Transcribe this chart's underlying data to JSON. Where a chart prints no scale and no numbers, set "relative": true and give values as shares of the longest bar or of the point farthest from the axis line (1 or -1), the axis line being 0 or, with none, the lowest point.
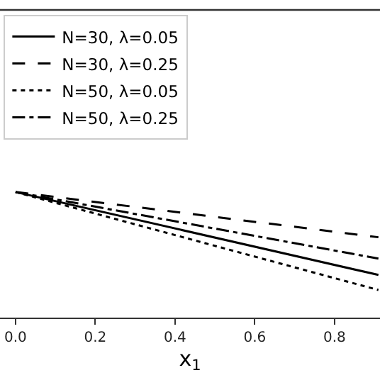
{
  "chart_data": {
    "type": "line",
    "relative": true,
    "xlabel": "x$_{1}$",
    "xlim": [
      -0.039,
      0.914
    ],
    "xticks": [
      {
        "value": 0,
        "label": "0.0"
      },
      {
        "value": 0.2,
        "label": "0.2"
      },
      {
        "value": 0.4,
        "label": "0.4"
      },
      {
        "value": 0.6,
        "label": "0.6"
      },
      {
        "value": 0.8,
        "label": "0.8"
      }
    ],
    "x": [
      0,
      0.91
    ],
    "series": [
      {
        "name": "N=30, λ=0.05",
        "color": "#000000",
        "line_style": "solid",
        "values": [
          1,
          0.34
        ]
      },
      {
        "name": "N=30, λ=0.25",
        "color": "#000000",
        "line_style": "dashed",
        "values": [
          1,
          0.64
        ]
      },
      {
        "name": "N=50, λ=0.05",
        "color": "#000000",
        "line_style": "dotted",
        "values": [
          1,
          0.22
        ]
      },
      {
        "name": "N=50, λ=0.25",
        "color": "#000000",
        "line_style": "dashdot",
        "values": [
          1,
          0.47
        ]
      }
    ],
    "legend": "top left"
  }
}
